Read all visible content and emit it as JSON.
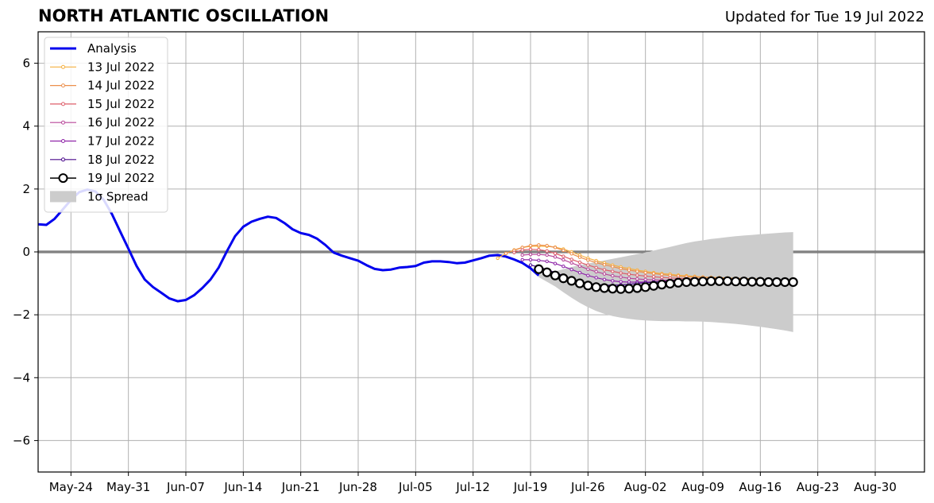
{
  "title": "NORTH ATLANTIC OSCILLATION",
  "subtitle": "Updated for Tue 19 Jul 2022",
  "colors": {
    "analysis": "#0000ee",
    "spread": "#cccccc",
    "grid": "#b0b0b0",
    "zero_line": "#555555"
  },
  "chart_data": {
    "type": "line",
    "title": "NORTH ATLANTIC OSCILLATION",
    "xlabel": "",
    "ylabel": "",
    "xlim": [
      "2022-05-20",
      "2022-09-05"
    ],
    "ylim": [
      -7,
      7
    ],
    "yticks": [
      -6,
      -4,
      -2,
      0,
      2,
      4,
      6
    ],
    "ytick_labels": [
      "−6",
      "−4",
      "−2",
      "0",
      "2",
      "4",
      "6"
    ],
    "xticks": [
      "2022-05-24",
      "2022-05-31",
      "2022-06-07",
      "2022-06-14",
      "2022-06-21",
      "2022-06-28",
      "2022-07-05",
      "2022-07-12",
      "2022-07-19",
      "2022-07-26",
      "2022-08-02",
      "2022-08-09",
      "2022-08-16",
      "2022-08-23",
      "2022-08-30"
    ],
    "xtick_labels": [
      "May-24",
      "May-31",
      "Jun-07",
      "Jun-14",
      "Jun-21",
      "Jun-28",
      "Jul-05",
      "Jul-12",
      "Jul-19",
      "Jul-26",
      "Aug-02",
      "Aug-09",
      "Aug-16",
      "Aug-23",
      "Aug-30"
    ],
    "grid": true,
    "legend_position": "top-left",
    "analysis": {
      "name": "Analysis",
      "color": "#0000ee",
      "start": "2022-05-20",
      "values": [
        0.88,
        0.86,
        1.05,
        1.35,
        1.65,
        1.9,
        1.98,
        1.92,
        1.65,
        1.2,
        0.65,
        0.1,
        -0.45,
        -0.88,
        -1.12,
        -1.3,
        -1.48,
        -1.57,
        -1.53,
        -1.38,
        -1.15,
        -0.88,
        -0.5,
        0.02,
        0.5,
        0.8,
        0.96,
        1.05,
        1.12,
        1.08,
        0.92,
        0.72,
        0.6,
        0.54,
        0.42,
        0.22,
        -0.02,
        -0.12,
        -0.2,
        -0.28,
        -0.42,
        -0.54,
        -0.58,
        -0.56,
        -0.5,
        -0.48,
        -0.45,
        -0.34,
        -0.3,
        -0.3,
        -0.32,
        -0.36,
        -0.34,
        -0.27,
        -0.2,
        -0.12,
        -0.1,
        -0.15,
        -0.24,
        -0.35,
        -0.52,
        -0.75
      ]
    },
    "forecast_series": [
      {
        "name": "13 Jul 2022",
        "color": "#f5b041",
        "start": "2022-07-15",
        "values": [
          -0.2,
          -0.05,
          0.06,
          0.14,
          0.18,
          0.18,
          0.18,
          0.15,
          0.09,
          0.0,
          -0.1,
          -0.2,
          -0.28,
          -0.35,
          -0.42,
          -0.48,
          -0.53,
          -0.58,
          -0.62,
          -0.66,
          -0.69,
          -0.71,
          -0.74,
          -0.76,
          -0.78,
          -0.8,
          -0.81,
          -0.82,
          -0.83,
          -0.84,
          -0.85,
          -0.86,
          -0.87
        ]
      },
      {
        "name": "14 Jul 2022",
        "color": "#ec8f4c",
        "start": "2022-07-16",
        "values": [
          -0.05,
          0.05,
          0.14,
          0.2,
          0.22,
          0.2,
          0.14,
          0.05,
          -0.06,
          -0.17,
          -0.26,
          -0.34,
          -0.41,
          -0.47,
          -0.53,
          -0.58,
          -0.62,
          -0.66,
          -0.69,
          -0.72,
          -0.75,
          -0.77,
          -0.79,
          -0.8,
          -0.81,
          -0.82,
          -0.83,
          -0.84,
          -0.85,
          -0.86,
          -0.87
        ]
      },
      {
        "name": "15 Jul 2022",
        "color": "#dd5e6a",
        "start": "2022-07-17",
        "values": [
          -0.02,
          0.06,
          0.08,
          0.07,
          0.03,
          -0.05,
          -0.14,
          -0.24,
          -0.33,
          -0.42,
          -0.5,
          -0.57,
          -0.62,
          -0.67,
          -0.71,
          -0.74,
          -0.77,
          -0.79,
          -0.81,
          -0.83,
          -0.84,
          -0.85,
          -0.86,
          -0.87,
          -0.88,
          -0.88,
          -0.89,
          -0.89
        ]
      },
      {
        "name": "16 Jul 2022",
        "color": "#b8469a",
        "start": "2022-07-18",
        "values": [
          -0.1,
          -0.08,
          -0.08,
          -0.1,
          -0.16,
          -0.25,
          -0.35,
          -0.45,
          -0.55,
          -0.63,
          -0.7,
          -0.76,
          -0.8,
          -0.84,
          -0.86,
          -0.88,
          -0.89,
          -0.9,
          -0.9,
          -0.9,
          -0.9,
          -0.9,
          -0.9,
          -0.9,
          -0.9,
          -0.9,
          -0.9
        ]
      },
      {
        "name": "17 Jul 2022",
        "color": "#8e24a8",
        "start": "2022-07-18",
        "values": [
          -0.25,
          -0.25,
          -0.27,
          -0.3,
          -0.37,
          -0.46,
          -0.56,
          -0.66,
          -0.75,
          -0.82,
          -0.88,
          -0.92,
          -0.95,
          -0.96,
          -0.96,
          -0.96,
          -0.95,
          -0.94,
          -0.93,
          -0.92,
          -0.91,
          -0.9,
          -0.9,
          -0.9,
          -0.9,
          -0.9,
          -0.9
        ]
      },
      {
        "name": "18 Jul 2022",
        "color": "#4b0a8c",
        "start": "2022-07-19",
        "values": [
          -0.42,
          -0.48,
          -0.56,
          -0.66,
          -0.76,
          -0.86,
          -0.94,
          -1.0,
          -1.04,
          -1.06,
          -1.06,
          -1.05,
          -1.03,
          -1.0,
          -0.98,
          -0.96,
          -0.94,
          -0.92,
          -0.91,
          -0.9,
          -0.9,
          -0.89,
          -0.89,
          -0.89,
          -0.89
        ]
      },
      {
        "name": "19 Jul 2022",
        "color": "#000000",
        "start": "2022-07-20",
        "values": [
          -0.55,
          -0.65,
          -0.75,
          -0.84,
          -0.92,
          -1.0,
          -1.07,
          -1.12,
          -1.15,
          -1.17,
          -1.18,
          -1.17,
          -1.15,
          -1.12,
          -1.08,
          -1.04,
          -1.01,
          -0.98,
          -0.96,
          -0.95,
          -0.94,
          -0.93,
          -0.93,
          -0.93,
          -0.94,
          -0.94,
          -0.95,
          -0.95,
          -0.96,
          -0.96,
          -0.96,
          -0.96
        ]
      }
    ],
    "spread": {
      "name": "1σ Spread",
      "color": "#cccccc",
      "start": "2022-07-20",
      "upper": [
        -0.72,
        -0.68,
        -0.62,
        -0.55,
        -0.48,
        -0.42,
        -0.37,
        -0.32,
        -0.27,
        -0.22,
        -0.17,
        -0.12,
        -0.07,
        -0.02,
        0.04,
        0.1,
        0.16,
        0.22,
        0.28,
        0.33,
        0.37,
        0.41,
        0.44,
        0.47,
        0.5,
        0.52,
        0.54,
        0.56,
        0.58,
        0.6,
        0.62,
        0.63
      ],
      "lower": [
        -0.8,
        -0.95,
        -1.1,
        -1.28,
        -1.46,
        -1.62,
        -1.76,
        -1.88,
        -1.97,
        -2.04,
        -2.09,
        -2.13,
        -2.16,
        -2.18,
        -2.19,
        -2.2,
        -2.2,
        -2.2,
        -2.21,
        -2.21,
        -2.22,
        -2.23,
        -2.25,
        -2.27,
        -2.29,
        -2.32,
        -2.35,
        -2.38,
        -2.42,
        -2.46,
        -2.5,
        -2.55
      ]
    }
  }
}
